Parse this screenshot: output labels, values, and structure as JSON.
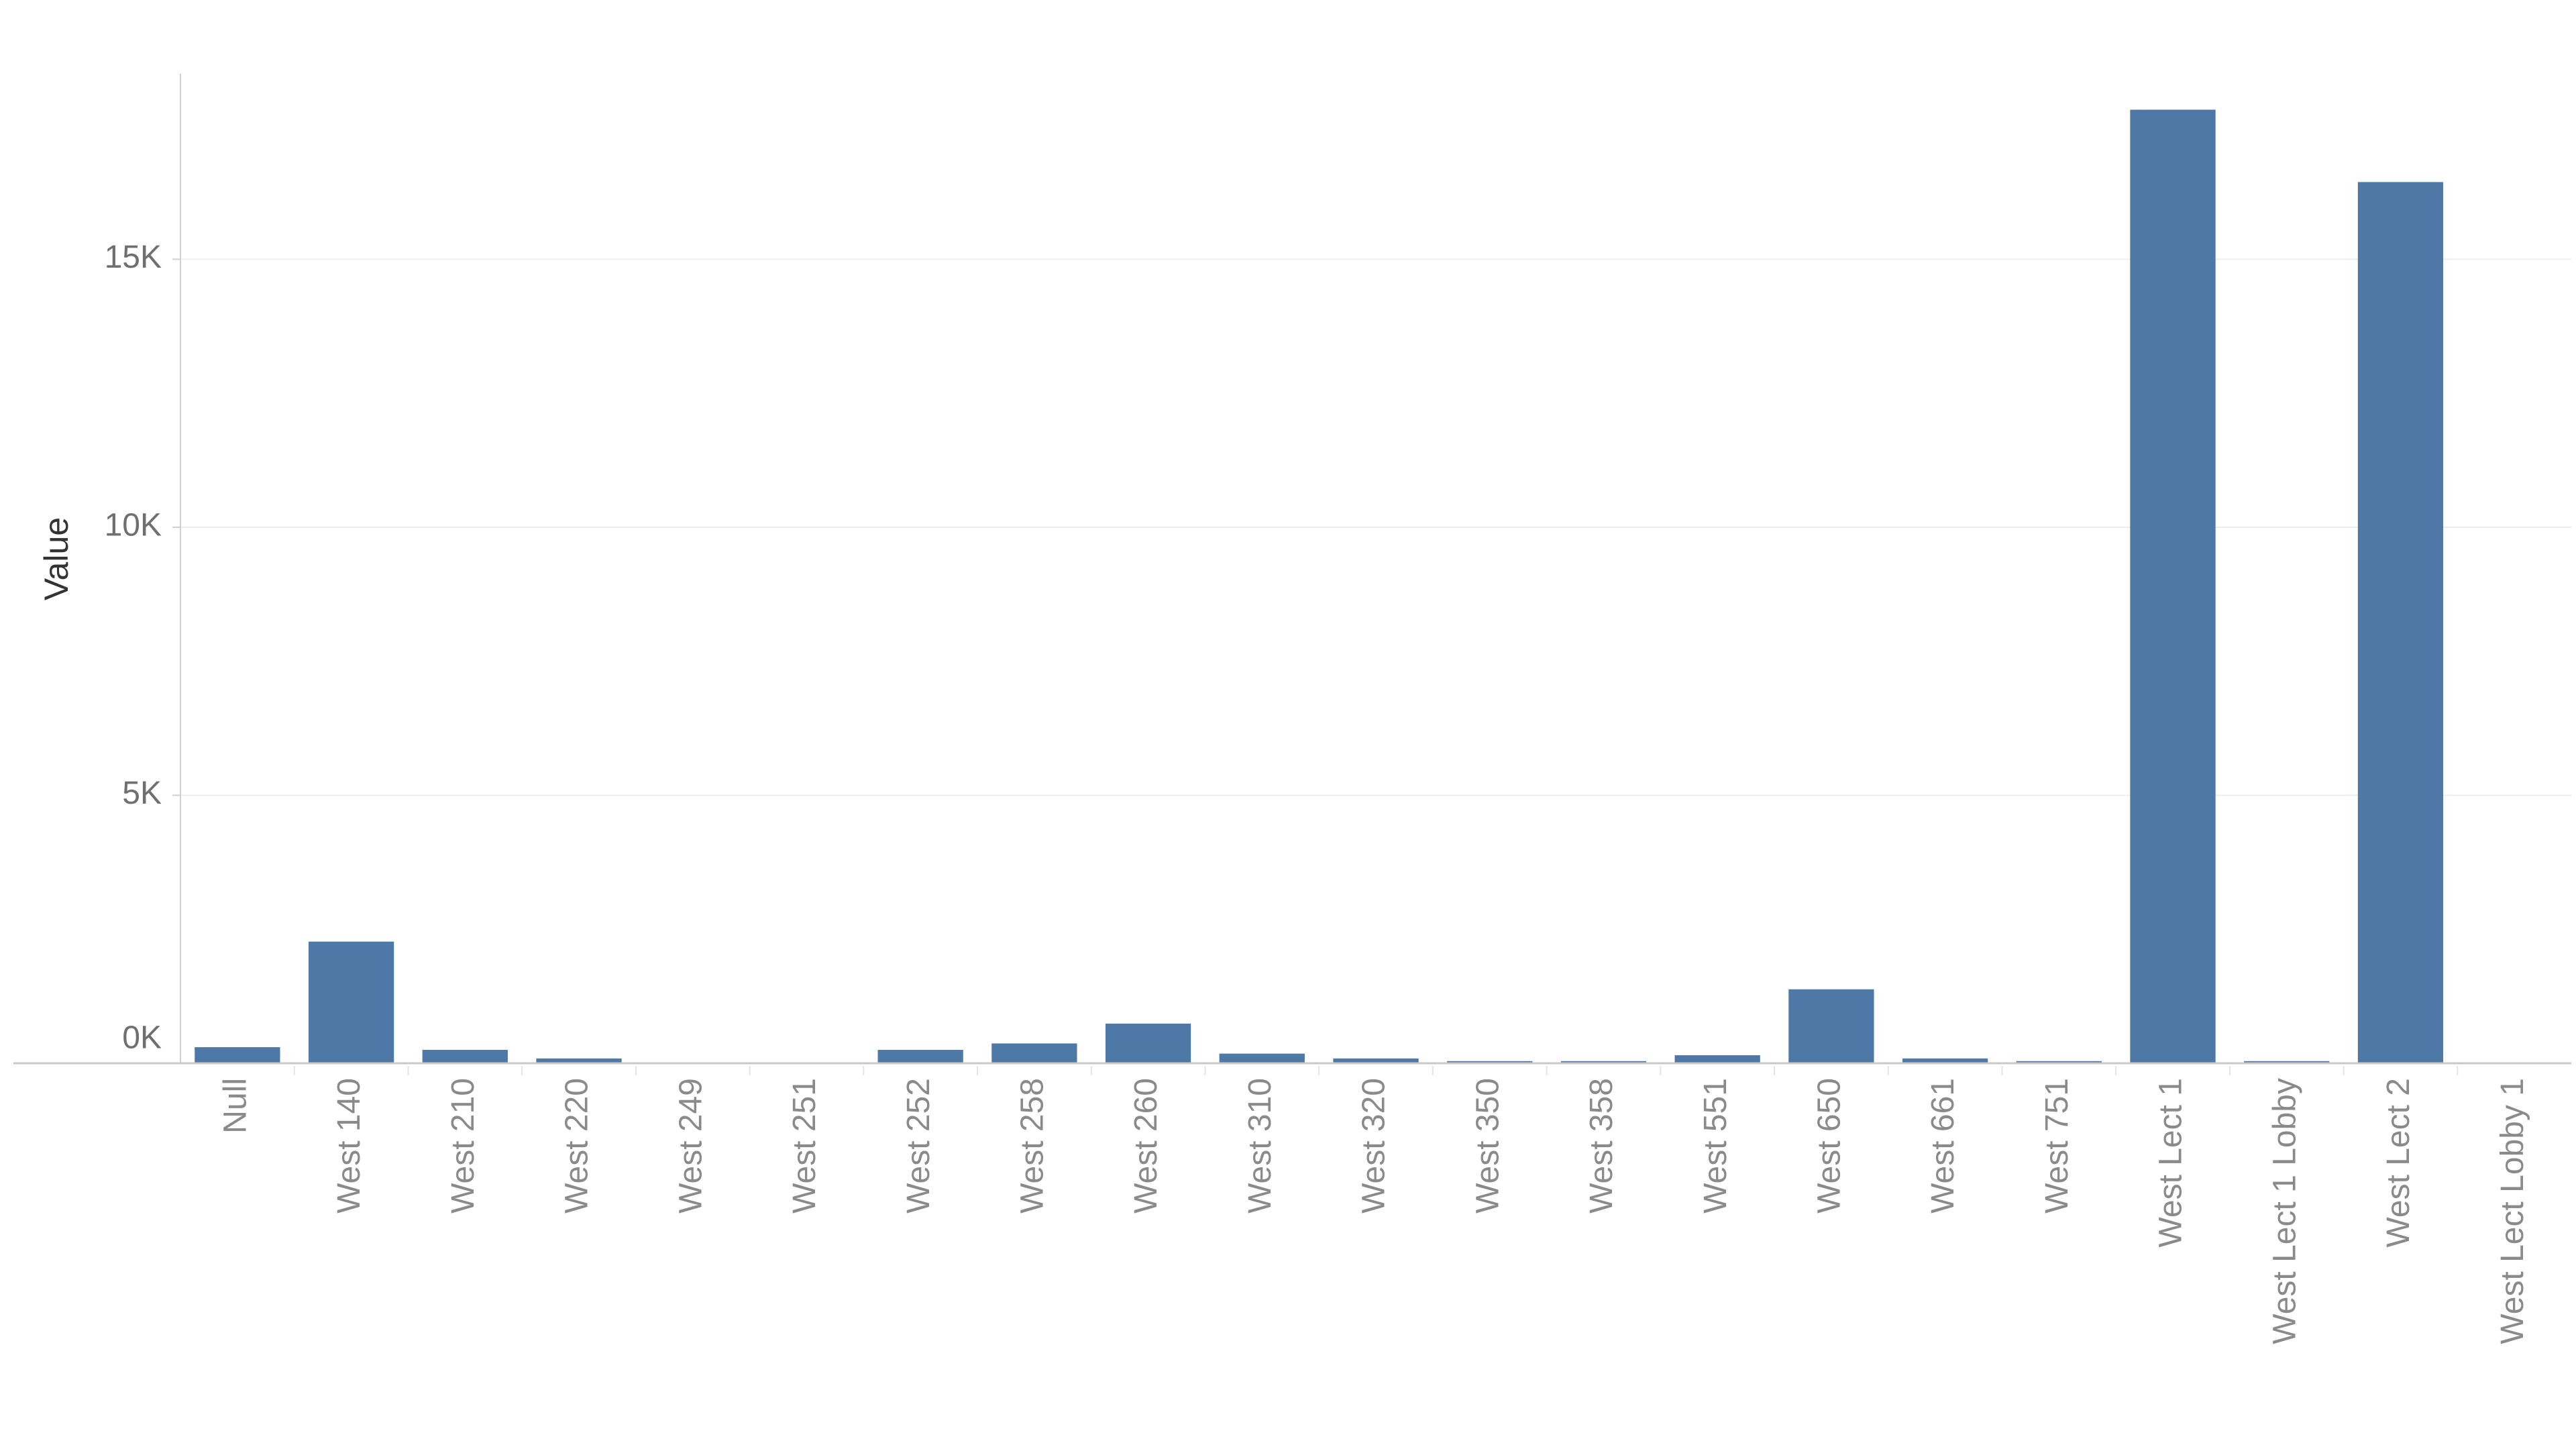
{
  "chart_data": {
    "type": "bar",
    "y_label": "Value",
    "categories": [
      "Null",
      "West 140",
      "West 210",
      "West 220",
      "West 249",
      "West 251",
      "West 252",
      "West 258",
      "West 260",
      "West 310",
      "West 320",
      "West 350",
      "West 358",
      "West 551",
      "West 650",
      "West 661",
      "West 751",
      "West Lect 1",
      "West Lect 1 Lobby",
      "West Lect 2",
      "West Lect Lobby 1"
    ],
    "values": [
      300,
      2270,
      250,
      90,
      10,
      0,
      250,
      370,
      740,
      180,
      90,
      40,
      40,
      150,
      1380,
      90,
      40,
      17790,
      40,
      16440,
      0
    ],
    "color": "#4e79a7",
    "ylim": [
      0,
      18460
    ],
    "yticks": [
      {
        "value": 0,
        "label": "0K"
      },
      {
        "value": 5000,
        "label": "5K"
      },
      {
        "value": 10000,
        "label": "10K"
      },
      {
        "value": 15000,
        "label": "15K"
      }
    ],
    "grid": true
  }
}
